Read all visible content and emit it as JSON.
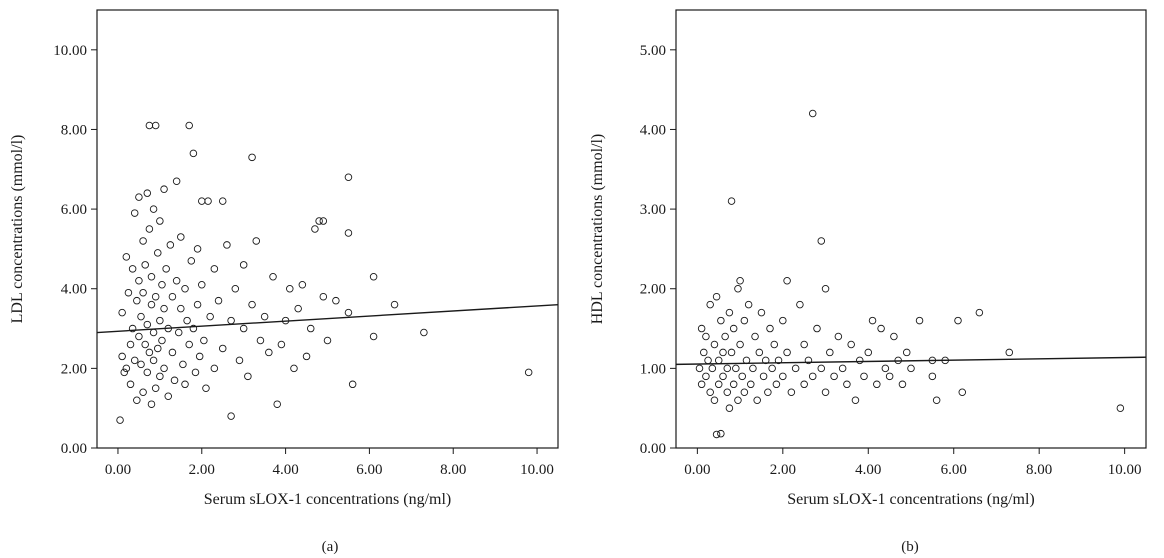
{
  "chart_data": [
    {
      "type": "scatter",
      "panel_label": "(a)",
      "title": "",
      "xlabel": "Serum sLOX-1 concentrations (ng/ml)",
      "ylabel": "LDL concentrations (mmol/l)",
      "xlim": [
        -0.5,
        10.5
      ],
      "ylim": [
        0,
        11
      ],
      "xticks": [
        0,
        2,
        4,
        6,
        8,
        10
      ],
      "xtick_labels": [
        "0.00",
        "2.00",
        "4.00",
        "6.00",
        "8.00",
        "10.00"
      ],
      "yticks": [
        0,
        2,
        4,
        6,
        8,
        10
      ],
      "ytick_labels": [
        "0.00",
        "2.00",
        "4.00",
        "6.00",
        "8.00",
        "10.00"
      ],
      "grid": false,
      "fit_line": {
        "x": [
          -0.5,
          10.5
        ],
        "y": [
          2.9,
          3.6
        ]
      },
      "points": [
        [
          0.05,
          0.7
        ],
        [
          0.1,
          2.3
        ],
        [
          0.1,
          3.4
        ],
        [
          0.15,
          1.9
        ],
        [
          0.2,
          4.8
        ],
        [
          0.2,
          2.0
        ],
        [
          0.25,
          3.9
        ],
        [
          0.3,
          2.6
        ],
        [
          0.3,
          1.6
        ],
        [
          0.35,
          4.5
        ],
        [
          0.35,
          3.0
        ],
        [
          0.4,
          2.2
        ],
        [
          0.4,
          5.9
        ],
        [
          0.45,
          3.7
        ],
        [
          0.45,
          1.2
        ],
        [
          0.5,
          4.2
        ],
        [
          0.5,
          2.8
        ],
        [
          0.5,
          6.3
        ],
        [
          0.55,
          3.3
        ],
        [
          0.55,
          2.1
        ],
        [
          0.6,
          5.2
        ],
        [
          0.6,
          1.4
        ],
        [
          0.6,
          3.9
        ],
        [
          0.65,
          2.6
        ],
        [
          0.65,
          4.6
        ],
        [
          0.7,
          6.4
        ],
        [
          0.7,
          3.1
        ],
        [
          0.7,
          1.9
        ],
        [
          0.75,
          2.4
        ],
        [
          0.75,
          5.5
        ],
        [
          0.75,
          8.1
        ],
        [
          0.8,
          3.6
        ],
        [
          0.8,
          1.1
        ],
        [
          0.8,
          4.3
        ],
        [
          0.85,
          2.9
        ],
        [
          0.85,
          6.0
        ],
        [
          0.85,
          2.2
        ],
        [
          0.9,
          8.1
        ],
        [
          0.9,
          3.8
        ],
        [
          0.9,
          1.5
        ],
        [
          0.95,
          4.9
        ],
        [
          0.95,
          2.5
        ],
        [
          1.0,
          3.2
        ],
        [
          1.0,
          5.7
        ],
        [
          1.0,
          1.8
        ],
        [
          1.05,
          4.1
        ],
        [
          1.05,
          2.7
        ],
        [
          1.1,
          6.5
        ],
        [
          1.1,
          3.5
        ],
        [
          1.1,
          2.0
        ],
        [
          1.15,
          4.5
        ],
        [
          1.2,
          3.0
        ],
        [
          1.2,
          1.3
        ],
        [
          1.25,
          5.1
        ],
        [
          1.3,
          2.4
        ],
        [
          1.3,
          3.8
        ],
        [
          1.35,
          1.7
        ],
        [
          1.4,
          4.2
        ],
        [
          1.4,
          6.7
        ],
        [
          1.45,
          2.9
        ],
        [
          1.5,
          3.5
        ],
        [
          1.5,
          5.3
        ],
        [
          1.55,
          2.1
        ],
        [
          1.6,
          4.0
        ],
        [
          1.6,
          1.6
        ],
        [
          1.65,
          3.2
        ],
        [
          1.7,
          8.1
        ],
        [
          1.7,
          2.6
        ],
        [
          1.75,
          4.7
        ],
        [
          1.8,
          7.4
        ],
        [
          1.8,
          3.0
        ],
        [
          1.85,
          1.9
        ],
        [
          1.9,
          5.0
        ],
        [
          1.9,
          3.6
        ],
        [
          1.95,
          2.3
        ],
        [
          2.0,
          6.2
        ],
        [
          2.0,
          4.1
        ],
        [
          2.05,
          2.7
        ],
        [
          2.1,
          1.5
        ],
        [
          2.15,
          6.2
        ],
        [
          2.2,
          3.3
        ],
        [
          2.3,
          2.0
        ],
        [
          2.3,
          4.5
        ],
        [
          2.4,
          3.7
        ],
        [
          2.5,
          6.2
        ],
        [
          2.5,
          2.5
        ],
        [
          2.6,
          5.1
        ],
        [
          2.7,
          0.8
        ],
        [
          2.7,
          3.2
        ],
        [
          2.8,
          4.0
        ],
        [
          2.9,
          2.2
        ],
        [
          3.0,
          4.6
        ],
        [
          3.0,
          3.0
        ],
        [
          3.1,
          1.8
        ],
        [
          3.2,
          7.3
        ],
        [
          3.2,
          3.6
        ],
        [
          3.3,
          5.2
        ],
        [
          3.4,
          2.7
        ],
        [
          3.5,
          3.3
        ],
        [
          3.6,
          2.4
        ],
        [
          3.7,
          4.3
        ],
        [
          3.8,
          1.1
        ],
        [
          3.9,
          2.6
        ],
        [
          4.0,
          3.2
        ],
        [
          4.1,
          4.0
        ],
        [
          4.2,
          2.0
        ],
        [
          4.3,
          3.5
        ],
        [
          4.4,
          4.1
        ],
        [
          4.5,
          2.3
        ],
        [
          4.6,
          3.0
        ],
        [
          4.7,
          5.5
        ],
        [
          4.8,
          5.7
        ],
        [
          4.9,
          3.8
        ],
        [
          4.9,
          5.7
        ],
        [
          5.0,
          2.7
        ],
        [
          5.2,
          3.7
        ],
        [
          5.5,
          6.8
        ],
        [
          5.5,
          3.4
        ],
        [
          5.5,
          5.4
        ],
        [
          5.6,
          1.6
        ],
        [
          6.1,
          4.3
        ],
        [
          6.1,
          2.8
        ],
        [
          6.6,
          3.6
        ],
        [
          7.3,
          2.9
        ],
        [
          9.8,
          1.9
        ]
      ]
    },
    {
      "type": "scatter",
      "panel_label": "(b)",
      "title": "",
      "xlabel": "Serum sLOX-1 concentrations (ng/ml)",
      "ylabel": "HDL concentrations (mmol/l)",
      "xlim": [
        -0.5,
        10.5
      ],
      "ylim": [
        0,
        5.5
      ],
      "xticks": [
        0,
        2,
        4,
        6,
        8,
        10
      ],
      "xtick_labels": [
        "0.00",
        "2.00",
        "4.00",
        "6.00",
        "8.00",
        "10.00"
      ],
      "yticks": [
        0,
        1,
        2,
        3,
        4,
        5
      ],
      "ytick_labels": [
        "0.00",
        "1.00",
        "2.00",
        "3.00",
        "4.00",
        "5.00"
      ],
      "grid": false,
      "fit_line": {
        "x": [
          -0.5,
          10.5
        ],
        "y": [
          1.05,
          1.14
        ]
      },
      "points": [
        [
          0.05,
          1.0
        ],
        [
          0.1,
          1.5
        ],
        [
          0.1,
          0.8
        ],
        [
          0.15,
          1.2
        ],
        [
          0.2,
          0.9
        ],
        [
          0.2,
          1.4
        ],
        [
          0.25,
          1.1
        ],
        [
          0.3,
          0.7
        ],
        [
          0.3,
          1.8
        ],
        [
          0.35,
          1.0
        ],
        [
          0.4,
          1.3
        ],
        [
          0.4,
          0.6
        ],
        [
          0.45,
          1.9
        ],
        [
          0.45,
          0.17
        ],
        [
          0.5,
          1.1
        ],
        [
          0.5,
          0.8
        ],
        [
          0.55,
          1.6
        ],
        [
          0.55,
          0.18
        ],
        [
          0.6,
          1.2
        ],
        [
          0.6,
          0.9
        ],
        [
          0.65,
          1.4
        ],
        [
          0.7,
          0.7
        ],
        [
          0.7,
          1.0
        ],
        [
          0.75,
          1.7
        ],
        [
          0.75,
          0.5
        ],
        [
          0.8,
          3.1
        ],
        [
          0.8,
          1.2
        ],
        [
          0.85,
          0.8
        ],
        [
          0.85,
          1.5
        ],
        [
          0.9,
          1.0
        ],
        [
          0.95,
          2.0
        ],
        [
          0.95,
          0.6
        ],
        [
          1.0,
          2.1
        ],
        [
          1.0,
          1.3
        ],
        [
          1.05,
          0.9
        ],
        [
          1.1,
          1.6
        ],
        [
          1.1,
          0.7
        ],
        [
          1.15,
          1.1
        ],
        [
          1.2,
          1.8
        ],
        [
          1.25,
          0.8
        ],
        [
          1.3,
          1.0
        ],
        [
          1.35,
          1.4
        ],
        [
          1.4,
          0.6
        ],
        [
          1.45,
          1.2
        ],
        [
          1.5,
          1.7
        ],
        [
          1.55,
          0.9
        ],
        [
          1.6,
          1.1
        ],
        [
          1.65,
          0.7
        ],
        [
          1.7,
          1.5
        ],
        [
          1.75,
          1.0
        ],
        [
          1.8,
          1.3
        ],
        [
          1.85,
          0.8
        ],
        [
          1.9,
          1.1
        ],
        [
          2.0,
          1.6
        ],
        [
          2.0,
          0.9
        ],
        [
          2.1,
          2.1
        ],
        [
          2.1,
          1.2
        ],
        [
          2.2,
          0.7
        ],
        [
          2.3,
          1.0
        ],
        [
          2.4,
          1.8
        ],
        [
          2.5,
          1.3
        ],
        [
          2.5,
          0.8
        ],
        [
          2.6,
          1.1
        ],
        [
          2.7,
          4.2
        ],
        [
          2.7,
          0.9
        ],
        [
          2.8,
          1.5
        ],
        [
          2.9,
          2.6
        ],
        [
          2.9,
          1.0
        ],
        [
          3.0,
          2.0
        ],
        [
          3.0,
          0.7
        ],
        [
          3.1,
          1.2
        ],
        [
          3.2,
          0.9
        ],
        [
          3.3,
          1.4
        ],
        [
          3.4,
          1.0
        ],
        [
          3.5,
          0.8
        ],
        [
          3.6,
          1.3
        ],
        [
          3.7,
          0.6
        ],
        [
          3.8,
          1.1
        ],
        [
          3.9,
          0.9
        ],
        [
          4.0,
          1.2
        ],
        [
          4.1,
          1.6
        ],
        [
          4.2,
          0.8
        ],
        [
          4.3,
          1.5
        ],
        [
          4.4,
          1.0
        ],
        [
          4.5,
          0.9
        ],
        [
          4.6,
          1.4
        ],
        [
          4.7,
          1.1
        ],
        [
          4.8,
          0.8
        ],
        [
          4.9,
          1.2
        ],
        [
          5.0,
          1.0
        ],
        [
          5.2,
          1.6
        ],
        [
          5.5,
          1.1
        ],
        [
          5.5,
          0.9
        ],
        [
          5.6,
          0.6
        ],
        [
          5.8,
          1.1
        ],
        [
          6.1,
          1.6
        ],
        [
          6.2,
          0.7
        ],
        [
          6.6,
          1.7
        ],
        [
          7.3,
          1.2
        ],
        [
          9.9,
          0.5
        ]
      ]
    }
  ]
}
